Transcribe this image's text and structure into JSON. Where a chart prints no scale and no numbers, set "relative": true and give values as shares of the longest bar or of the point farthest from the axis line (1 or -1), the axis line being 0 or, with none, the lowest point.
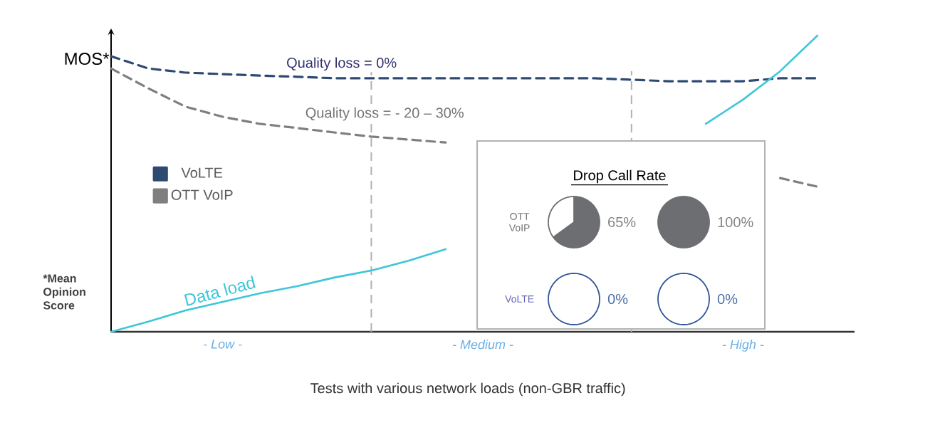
{
  "chart_data": [
    {
      "type": "line",
      "relative": true,
      "ylabel": "MOS*",
      "legend": "left",
      "categories": [
        null,
        null,
        null,
        "- Low -",
        null,
        null,
        null,
        null,
        null,
        null,
        "- Medium -",
        null,
        null,
        null,
        null,
        null,
        null,
        "- High -",
        null,
        null,
        null
      ],
      "series": [
        {
          "name": "VoLTE",
          "color": "#2e4a73",
          "line_style": "dashed",
          "values": [
            0.93,
            0.889,
            0.875,
            0.87,
            0.865,
            0.861,
            0.856,
            0.856,
            0.856,
            0.856,
            0.856,
            0.856,
            0.856,
            0.856,
            0.851,
            0.846,
            0.846,
            0.846,
            0.856,
            0.856,
            null
          ]
        },
        {
          "name": "OTT VoIP",
          "color": "#7f7f7f",
          "line_style": "dashed",
          "values": [
            0.889,
            0.822,
            0.76,
            0.726,
            0.702,
            0.688,
            0.673,
            0.659,
            0.649,
            0.639,
            null,
            null,
            null,
            null,
            null,
            null,
            null,
            null,
            0.519,
            0.49,
            null
          ]
        },
        {
          "name": "Data load",
          "color": "#3ec6d8",
          "line_style": "solid",
          "values": [
            0,
            0.034,
            0.072,
            0.101,
            0.13,
            0.154,
            0.183,
            0.207,
            0.24,
            0.279,
            null,
            null,
            null,
            null,
            null,
            null,
            0.702,
            0.784,
            0.88,
            1,
            null
          ]
        }
      ],
      "annotations": [
        "Quality loss = 0%",
        "Quality loss = - 20 – 30%",
        "*Mean Opinion Score",
        "Tests with various network loads (non-GBR traffic)"
      ]
    },
    {
      "type": "other",
      "title": "Drop Call Rate",
      "annotations": [
        "OTT VoIP",
        "VoLTE"
      ]
    },
    {
      "type": "pie",
      "categories": [
        null,
        null
      ],
      "values": [
        65,
        35
      ],
      "colors": [
        "#6d6e71",
        "#ffffff"
      ],
      "value_labels": [
        "65%",
        null
      ]
    },
    {
      "type": "pie",
      "categories": [
        null,
        null
      ],
      "values": [
        100,
        0
      ],
      "colors": [
        "#6d6e71",
        "#ffffff"
      ],
      "value_labels": [
        "100%",
        null
      ]
    },
    {
      "type": "pie",
      "categories": [
        null,
        null
      ],
      "values": [
        0,
        100
      ],
      "colors": [
        "#2f5597",
        "#ffffff"
      ],
      "value_labels": [
        "0%",
        null
      ]
    },
    {
      "type": "pie",
      "categories": [
        null,
        null
      ],
      "values": [
        0,
        100
      ],
      "colors": [
        "#2f5597",
        "#ffffff"
      ],
      "value_labels": [
        "0%",
        null
      ]
    }
  ]
}
